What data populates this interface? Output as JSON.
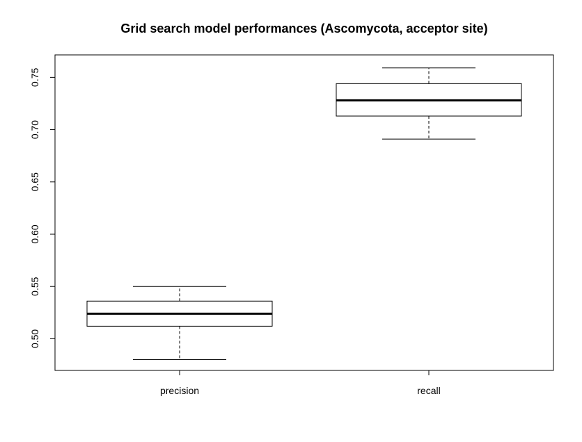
{
  "chart_data": {
    "type": "box",
    "title": "Grid search model performances (Ascomycota, acceptor site)",
    "xlabel": "",
    "ylabel": "",
    "ylim": [
      0.4697,
      0.7715
    ],
    "yticks": [
      0.5,
      0.55,
      0.6,
      0.65,
      0.7,
      0.75
    ],
    "ytick_labels": [
      "0.50",
      "0.55",
      "0.60",
      "0.65",
      "0.70",
      "0.75"
    ],
    "grid": false,
    "legend": "none",
    "categories": [
      "precision",
      "recall"
    ],
    "boxes": [
      {
        "category": "precision",
        "whisker_low": 0.48,
        "q1": 0.512,
        "median": 0.524,
        "q3": 0.536,
        "whisker_high": 0.55
      },
      {
        "category": "recall",
        "whisker_low": 0.691,
        "q1": 0.713,
        "median": 0.728,
        "q3": 0.744,
        "whisker_high": 0.759
      }
    ],
    "colors": {
      "box_fill": "#ffffff",
      "stroke": "#000000"
    }
  }
}
